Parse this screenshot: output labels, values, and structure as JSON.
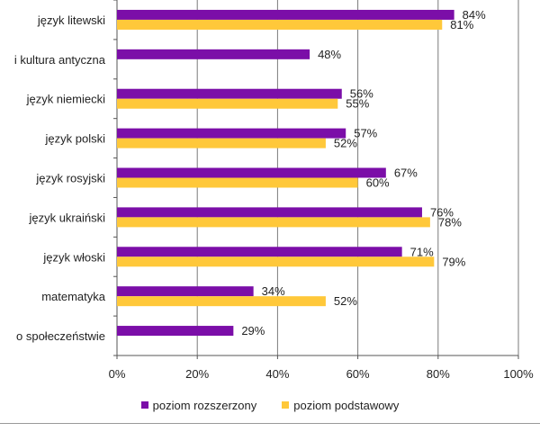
{
  "chart_data": {
    "type": "bar",
    "orientation": "horizontal",
    "categories": [
      "język litewski",
      "i kultura antyczna",
      "język niemiecki",
      "język polski",
      "język rosyjski",
      "język ukraiński",
      "język włoski",
      "matematyka",
      "o społeczeństwie"
    ],
    "series": [
      {
        "name": "poziom rozszerzony",
        "color": "#7b0ea8",
        "values": [
          84,
          48,
          56,
          57,
          67,
          76,
          71,
          34,
          29
        ],
        "labels": [
          "84%",
          "48%",
          "56%",
          "57%",
          "67%",
          "76%",
          "71%",
          "34%",
          "29%"
        ]
      },
      {
        "name": "poziom podstawowy",
        "color": "#ffc83a",
        "values": [
          81,
          null,
          55,
          52,
          60,
          78,
          79,
          52,
          null
        ],
        "labels": [
          "81%",
          null,
          "55%",
          "52%",
          "60%",
          "78%",
          "79%",
          "52%",
          null
        ]
      }
    ],
    "xlim": [
      0,
      100
    ],
    "xticks": [
      0,
      20,
      40,
      60,
      80,
      100
    ],
    "xtick_labels": [
      "0%",
      "20%",
      "40%",
      "60%",
      "80%",
      "100%"
    ],
    "grid": true,
    "legend_position": "bottom"
  }
}
